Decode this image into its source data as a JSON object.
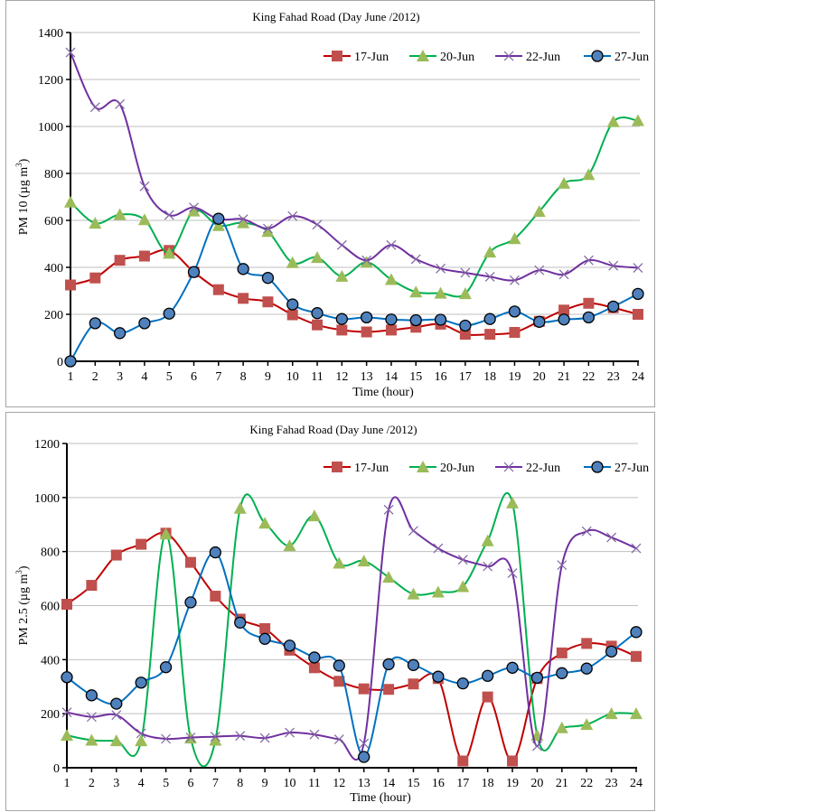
{
  "chart_data": [
    {
      "type": "line",
      "title": "King Fahad Road (Day June /2012)",
      "xlabel": "Time (hour)",
      "ylabel": "PM 10 (µg m",
      "ylabel_sup": "3",
      "ylabel_close": ")",
      "x": [
        1,
        2,
        3,
        4,
        5,
        6,
        7,
        8,
        9,
        10,
        11,
        12,
        13,
        14,
        15,
        16,
        17,
        18,
        19,
        20,
        21,
        22,
        23,
        24
      ],
      "ylim": [
        0,
        1400
      ],
      "yticks": [
        0,
        200,
        400,
        600,
        800,
        1000,
        1200,
        1400
      ],
      "grid": true,
      "legend": "top-right",
      "series": [
        {
          "name": "17-Jun",
          "color": "#c00000",
          "marker": "square",
          "marker_color": "#c0504d",
          "values": [
            325,
            355,
            430,
            448,
            472,
            380,
            305,
            268,
            253,
            198,
            155,
            133,
            125,
            133,
            145,
            158,
            115,
            115,
            123,
            170,
            218,
            247,
            228,
            200
          ]
        },
        {
          "name": "20-Jun",
          "color": "#00b050",
          "marker": "triangle",
          "marker_color": "#9bbb59",
          "values": [
            678,
            588,
            625,
            603,
            460,
            640,
            578,
            590,
            553,
            420,
            442,
            362,
            422,
            348,
            295,
            290,
            288,
            465,
            522,
            638,
            758,
            795,
            1020,
            1025
          ]
        },
        {
          "name": "22-Jun",
          "color": "#7030a0",
          "marker": "x",
          "marker_color": "#8064a2",
          "values": [
            1315,
            1082,
            1095,
            745,
            623,
            655,
            605,
            605,
            565,
            618,
            582,
            495,
            430,
            495,
            435,
            395,
            377,
            360,
            345,
            388,
            370,
            430,
            407,
            398
          ]
        },
        {
          "name": "27-Jun",
          "color": "#0070c0",
          "marker": "circle",
          "marker_color": "#4f81bd",
          "values": [
            0,
            162,
            120,
            162,
            203,
            380,
            607,
            393,
            355,
            242,
            205,
            180,
            187,
            178,
            175,
            177,
            152,
            180,
            212,
            168,
            178,
            187,
            233,
            287
          ]
        }
      ]
    },
    {
      "type": "line",
      "title": "King Fahad Road (Day June /2012)",
      "xlabel": "Time (hour)",
      "ylabel": "PM 2.5 (µg m",
      "ylabel_sup": "3",
      "ylabel_close": ")",
      "x": [
        1,
        2,
        3,
        4,
        5,
        6,
        7,
        8,
        9,
        10,
        11,
        12,
        13,
        14,
        15,
        16,
        17,
        18,
        19,
        20,
        21,
        22,
        23,
        24
      ],
      "ylim": [
        0,
        1200
      ],
      "yticks": [
        0,
        200,
        400,
        600,
        800,
        1000,
        1200
      ],
      "grid": true,
      "legend": "top-right",
      "series": [
        {
          "name": "17-Jun",
          "color": "#c00000",
          "marker": "square",
          "marker_color": "#c0504d",
          "values": [
            605,
            675,
            787,
            827,
            868,
            760,
            635,
            550,
            515,
            435,
            370,
            320,
            292,
            290,
            310,
            330,
            25,
            262,
            25,
            330,
            425,
            460,
            450,
            412
          ]
        },
        {
          "name": "20-Jun",
          "color": "#00b050",
          "marker": "triangle",
          "marker_color": "#9bbb59",
          "values": [
            120,
            102,
            100,
            100,
            865,
            110,
            102,
            960,
            905,
            822,
            932,
            757,
            765,
            705,
            643,
            650,
            670,
            840,
            980,
            120,
            148,
            160,
            200,
            200
          ]
        },
        {
          "name": "22-Jun",
          "color": "#7030a0",
          "marker": "x",
          "marker_color": "#8064a2",
          "values": [
            205,
            188,
            195,
            127,
            107,
            112,
            115,
            118,
            110,
            130,
            123,
            105,
            90,
            955,
            877,
            812,
            770,
            745,
            720,
            80,
            750,
            875,
            852,
            812
          ]
        },
        {
          "name": "27-Jun",
          "color": "#0070c0",
          "marker": "circle",
          "marker_color": "#4f81bd",
          "values": [
            335,
            268,
            237,
            315,
            372,
            612,
            797,
            537,
            477,
            452,
            408,
            378,
            40,
            383,
            380,
            337,
            312,
            340,
            370,
            333,
            350,
            367,
            430,
            502
          ]
        }
      ]
    }
  ]
}
